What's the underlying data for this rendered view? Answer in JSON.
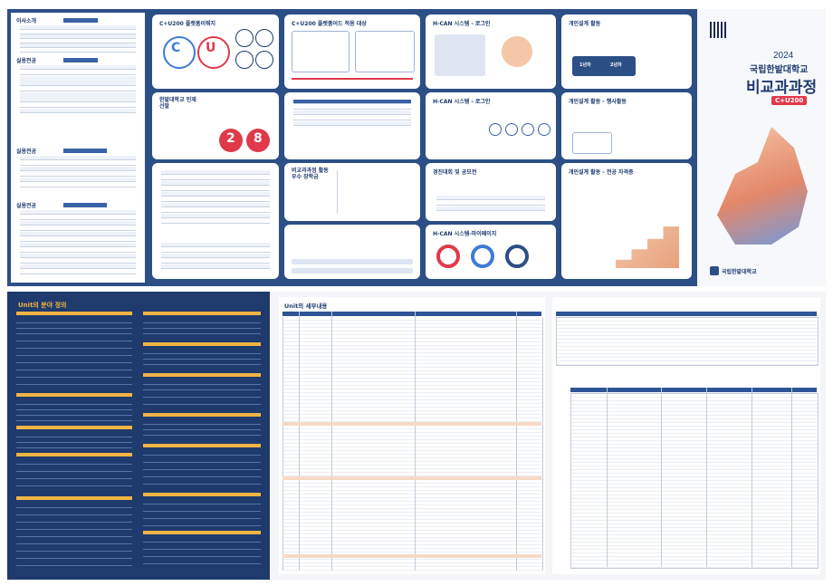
{
  "top": {
    "left_page": {
      "sections": [
        {
          "title": "이사소개"
        },
        {
          "title": "실용전공"
        },
        {
          "title": "실용전공"
        },
        {
          "title": "실용전공"
        }
      ]
    },
    "panels": [
      {
        "title": "C+U200 플랫폼이뭐지"
      },
      {
        "title": "C+U200 플랫폼어드 적용 대상"
      },
      {
        "title": "H-CAN 시스템 - 로그인"
      },
      {
        "title": "개인설계 활동"
      },
      {
        "title": "한밭대학교 인재 선발"
      },
      {
        "title": "H-CAN 시스템 - 로그인"
      },
      {
        "title": "개인설계 활동 - 행사활동"
      },
      {
        "title": "비교과과정 활동 우수 장학금"
      },
      {
        "title": "경진대회 및 공모전"
      },
      {
        "title": "개인설계 활동 - 전공 자격증"
      },
      {
        "title": "H-CAN 시스템-마이페이지"
      }
    ],
    "stats": [
      {
        "value": "2"
      },
      {
        "value": "8"
      }
    ],
    "years": [
      "1년차",
      "2년차"
    ],
    "cover": {
      "year": "2024",
      "university": "국립한밭대학교",
      "title": "비교과과정",
      "badge": "C+U200",
      "logo_text": "국립한밭대학교",
      "colors": {
        "navy": "#2c4f86",
        "red": "#e0394a",
        "blue": "#3e7bd6"
      }
    }
  },
  "bottom": {
    "left_title": "Unit의 분야 정의",
    "mid_title": "Unit의 세부내용"
  }
}
